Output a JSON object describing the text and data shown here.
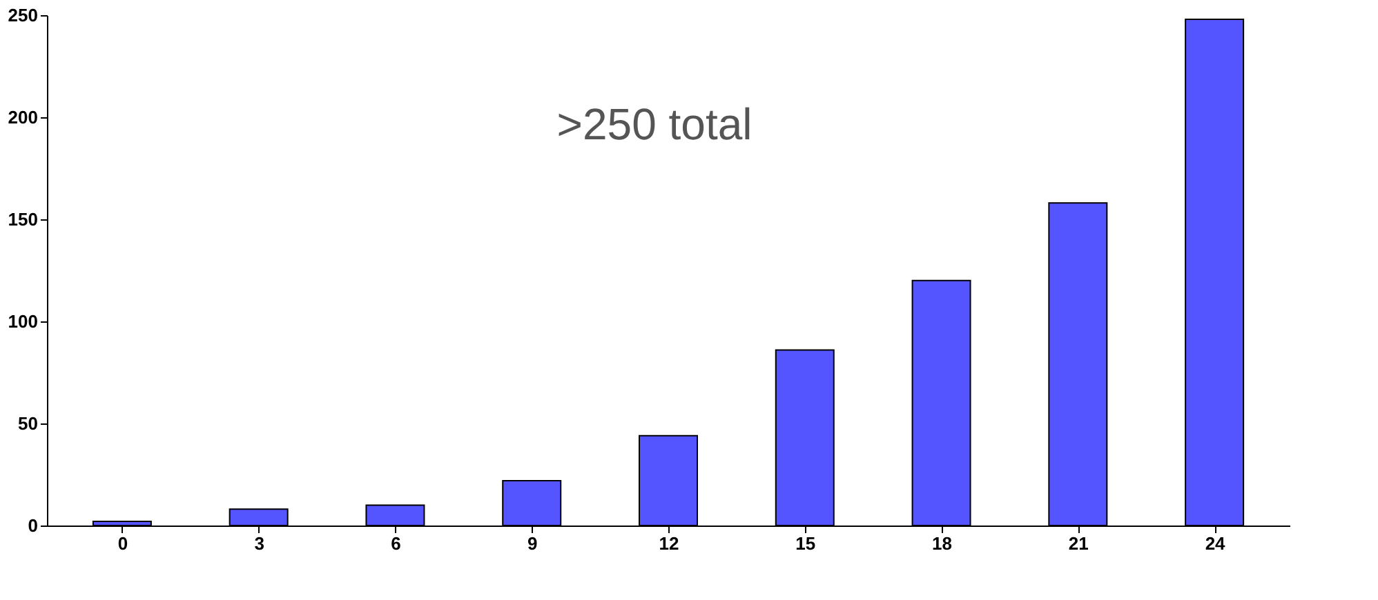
{
  "chart_data": {
    "type": "bar",
    "categories": [
      "0",
      "3",
      "6",
      "9",
      "12",
      "15",
      "18",
      "21",
      "24"
    ],
    "values": [
      2,
      8,
      10,
      22,
      44,
      86,
      120,
      158,
      248
    ],
    "color": "#5555ff",
    "ylim": [
      0,
      250
    ],
    "yticks": [
      0,
      50,
      100,
      150,
      200,
      250
    ],
    "grid": false,
    "annotations": [
      ">250 total"
    ]
  }
}
